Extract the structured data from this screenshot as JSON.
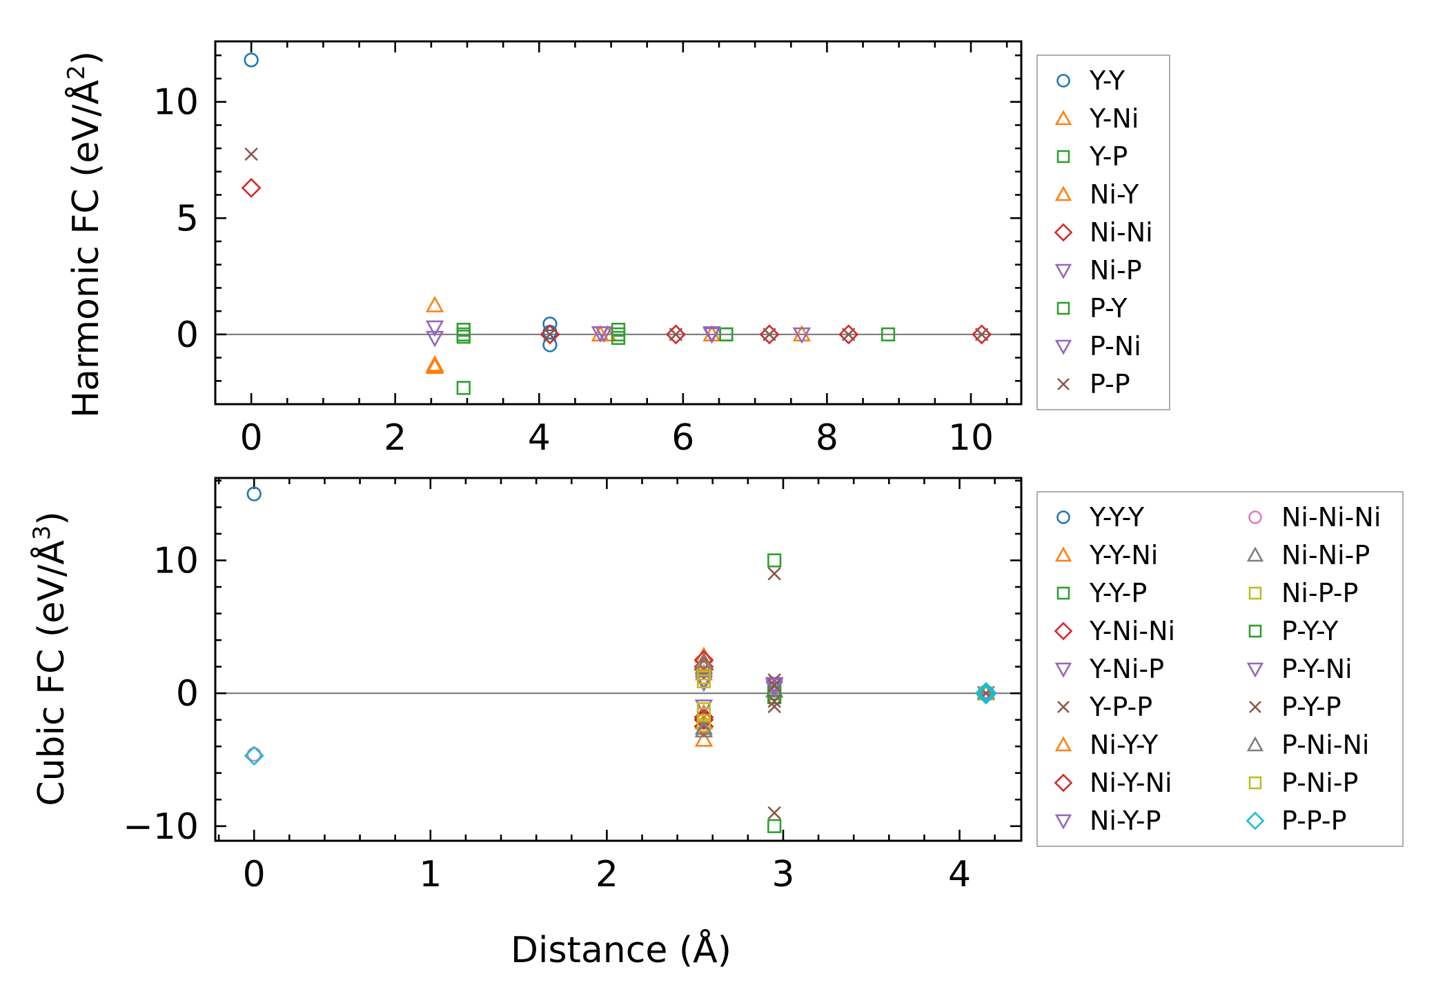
{
  "chart_data": [
    {
      "type": "scatter",
      "title": "",
      "xlabel": "",
      "ylabel_main": "Harmonic FC (eV/Å",
      "ylabel_exp": "2",
      "ylabel_end": ")",
      "xlim": [
        -0.5,
        10.7
      ],
      "ylim": [
        -3,
        12.6
      ],
      "xticks": [
        0,
        2,
        4,
        6,
        8,
        10
      ],
      "xtick_labels": [
        "0",
        "2",
        "4",
        "6",
        "8",
        "10"
      ],
      "yticks": [
        0,
        5,
        10
      ],
      "ytick_labels": [
        "0",
        "5",
        "10"
      ],
      "grid": false,
      "legend_position": "outside-right",
      "series": [
        {
          "name": "Y-Y",
          "marker": "circle",
          "color": "#1f77b4",
          "points": [
            [
              0,
              11.8
            ],
            [
              4.15,
              0.45
            ],
            [
              4.15,
              -0.45
            ],
            [
              4.15,
              0.1
            ]
          ]
        },
        {
          "name": "Y-Ni",
          "marker": "triangle-up",
          "color": "#ff7f0e",
          "points": [
            [
              2.55,
              1.25
            ],
            [
              2.55,
              -1.3
            ],
            [
              2.55,
              -1.4
            ],
            [
              4.85,
              0.0
            ],
            [
              6.4,
              0.0
            ],
            [
              7.65,
              0.0
            ]
          ]
        },
        {
          "name": "Y-P",
          "marker": "square",
          "color": "#2ca02c",
          "points": [
            [
              2.95,
              0.2
            ],
            [
              2.95,
              -0.1
            ],
            [
              2.95,
              -2.3
            ],
            [
              5.1,
              0.2
            ],
            [
              5.1,
              -0.15
            ],
            [
              6.6,
              0.0
            ],
            [
              8.85,
              0.0
            ]
          ]
        },
        {
          "name": "Ni-Y",
          "marker": "triangle-up",
          "color": "#ff7f0e",
          "points": [
            [
              2.55,
              -1.35
            ],
            [
              4.95,
              0.0
            ]
          ]
        },
        {
          "name": "Ni-Ni",
          "marker": "diamond",
          "color": "#d62728",
          "points": [
            [
              0,
              6.3
            ],
            [
              4.15,
              0.0
            ],
            [
              5.9,
              0.0
            ],
            [
              7.2,
              0.0
            ],
            [
              8.3,
              0.0
            ],
            [
              10.15,
              0.0
            ]
          ]
        },
        {
          "name": "Ni-P",
          "marker": "triangle-down",
          "color": "#9467bd",
          "points": [
            [
              2.55,
              0.3
            ],
            [
              2.55,
              -0.15
            ],
            [
              4.85,
              0.05
            ],
            [
              6.4,
              0.05
            ],
            [
              7.65,
              0.0
            ]
          ]
        },
        {
          "name": "P-Y",
          "marker": "square",
          "color": "#2ca02c",
          "points": [
            [
              2.95,
              0.0
            ],
            [
              5.1,
              0.0
            ],
            [
              6.6,
              0.0
            ]
          ]
        },
        {
          "name": "P-Ni",
          "marker": "triangle-down",
          "color": "#9467bd",
          "points": [
            [
              4.9,
              0.05
            ],
            [
              6.4,
              0.0
            ]
          ]
        },
        {
          "name": "P-P",
          "marker": "x",
          "color": "#8c564b",
          "points": [
            [
              0,
              7.75
            ],
            [
              4.15,
              0.0
            ],
            [
              5.9,
              0.0
            ],
            [
              7.2,
              0.0
            ],
            [
              8.3,
              0.0
            ],
            [
              10.15,
              0.0
            ]
          ]
        }
      ]
    },
    {
      "type": "scatter",
      "title": "",
      "xlabel": "Distance (Å)",
      "ylabel_main": "Cubic FC (eV/Å",
      "ylabel_exp": "3",
      "ylabel_end": ")",
      "xlim": [
        -0.22,
        4.35
      ],
      "ylim": [
        -11.1,
        16.2
      ],
      "xticks": [
        0,
        1,
        2,
        3,
        4
      ],
      "xtick_labels": [
        "0",
        "1",
        "2",
        "3",
        "4"
      ],
      "yticks": [
        -10,
        0,
        10
      ],
      "ytick_labels": [
        "−10",
        "0",
        "10"
      ],
      "grid": false,
      "legend_position": "outside-right",
      "legend_columns": 2,
      "series": [
        {
          "name": "Y-Y-Y",
          "marker": "circle",
          "color": "#1f77b4",
          "points": [
            [
              0,
              15.0
            ],
            [
              4.15,
              0.0
            ]
          ]
        },
        {
          "name": "Y-Y-Ni",
          "marker": "triangle-up",
          "color": "#ff7f0e",
          "points": [
            [
              2.55,
              2.8
            ],
            [
              2.55,
              1.5
            ],
            [
              2.55,
              -1.5
            ],
            [
              2.55,
              -3.5
            ],
            [
              4.15,
              0.0
            ]
          ]
        },
        {
          "name": "Y-Y-P",
          "marker": "square",
          "color": "#2ca02c",
          "points": [
            [
              2.95,
              10.0
            ],
            [
              2.95,
              0.3
            ],
            [
              2.95,
              -0.3
            ],
            [
              2.95,
              -10.0
            ],
            [
              4.15,
              0.0
            ]
          ]
        },
        {
          "name": "Y-Ni-Ni",
          "marker": "diamond",
          "color": "#d62728",
          "points": [
            [
              2.55,
              2.5
            ],
            [
              2.55,
              1.8
            ],
            [
              2.55,
              -1.8
            ],
            [
              2.55,
              -2.5
            ],
            [
              4.15,
              0.0
            ]
          ]
        },
        {
          "name": "Y-Ni-P",
          "marker": "triangle-down",
          "color": "#9467bd",
          "points": [
            [
              2.55,
              1.0
            ],
            [
              2.55,
              -1.0
            ],
            [
              2.95,
              0.7
            ],
            [
              4.15,
              0.0
            ]
          ]
        },
        {
          "name": "Y-P-P",
          "marker": "x",
          "color": "#8c564b",
          "points": [
            [
              2.95,
              9.0
            ],
            [
              2.95,
              1.0
            ],
            [
              2.95,
              -1.0
            ],
            [
              2.95,
              -9.0
            ],
            [
              4.15,
              0.0
            ]
          ]
        },
        {
          "name": "Ni-Y-Y",
          "marker": "triangle-up",
          "color": "#ff7f0e",
          "points": [
            [
              2.55,
              2.2
            ],
            [
              2.55,
              -2.2
            ]
          ]
        },
        {
          "name": "Ni-Y-Ni",
          "marker": "diamond",
          "color": "#d62728",
          "points": [
            [
              2.55,
              2.0
            ],
            [
              2.55,
              -2.0
            ]
          ]
        },
        {
          "name": "Ni-Y-P",
          "marker": "triangle-down",
          "color": "#9467bd",
          "points": [
            [
              2.55,
              0.8
            ],
            [
              2.95,
              0.4
            ]
          ]
        },
        {
          "name": "Ni-Ni-Ni",
          "marker": "circle",
          "color": "#e377c2",
          "points": [
            [
              0,
              -4.6
            ],
            [
              4.15,
              0.0
            ]
          ]
        },
        {
          "name": "Ni-Ni-P",
          "marker": "triangle-up",
          "color": "#7f7f7f",
          "points": [
            [
              2.55,
              2.0
            ],
            [
              2.55,
              -2.8
            ],
            [
              2.95,
              0.2
            ],
            [
              4.15,
              0.1
            ]
          ]
        },
        {
          "name": "Ni-P-P",
          "marker": "square",
          "color": "#bcbd22",
          "points": [
            [
              2.55,
              1.5
            ],
            [
              2.55,
              0.9
            ],
            [
              2.55,
              -1.2
            ],
            [
              2.55,
              -2.4
            ],
            [
              4.15,
              0.0
            ]
          ]
        },
        {
          "name": "P-Y-Y",
          "marker": "square",
          "color": "#2ca02c",
          "points": [
            [
              2.95,
              0.0
            ]
          ]
        },
        {
          "name": "P-Y-Ni",
          "marker": "triangle-down",
          "color": "#9467bd",
          "points": [
            [
              2.95,
              0.6
            ]
          ]
        },
        {
          "name": "P-Y-P",
          "marker": "x",
          "color": "#8c564b",
          "points": [
            [
              2.95,
              -0.6
            ],
            [
              2.95,
              0.6
            ]
          ]
        },
        {
          "name": "P-Ni-Ni",
          "marker": "triangle-up",
          "color": "#7f7f7f",
          "points": [
            [
              2.55,
              -2.6
            ],
            [
              2.55,
              2.4
            ]
          ]
        },
        {
          "name": "P-Ni-P",
          "marker": "square",
          "color": "#bcbd22",
          "points": [
            [
              2.55,
              1.2
            ],
            [
              2.55,
              -1.6
            ]
          ]
        },
        {
          "name": "P-P-P",
          "marker": "diamond",
          "color": "#17becf",
          "points": [
            [
              0,
              -4.7
            ],
            [
              4.15,
              0.0
            ],
            [
              4.15,
              0.1
            ],
            [
              4.15,
              -0.1
            ]
          ]
        }
      ]
    }
  ]
}
